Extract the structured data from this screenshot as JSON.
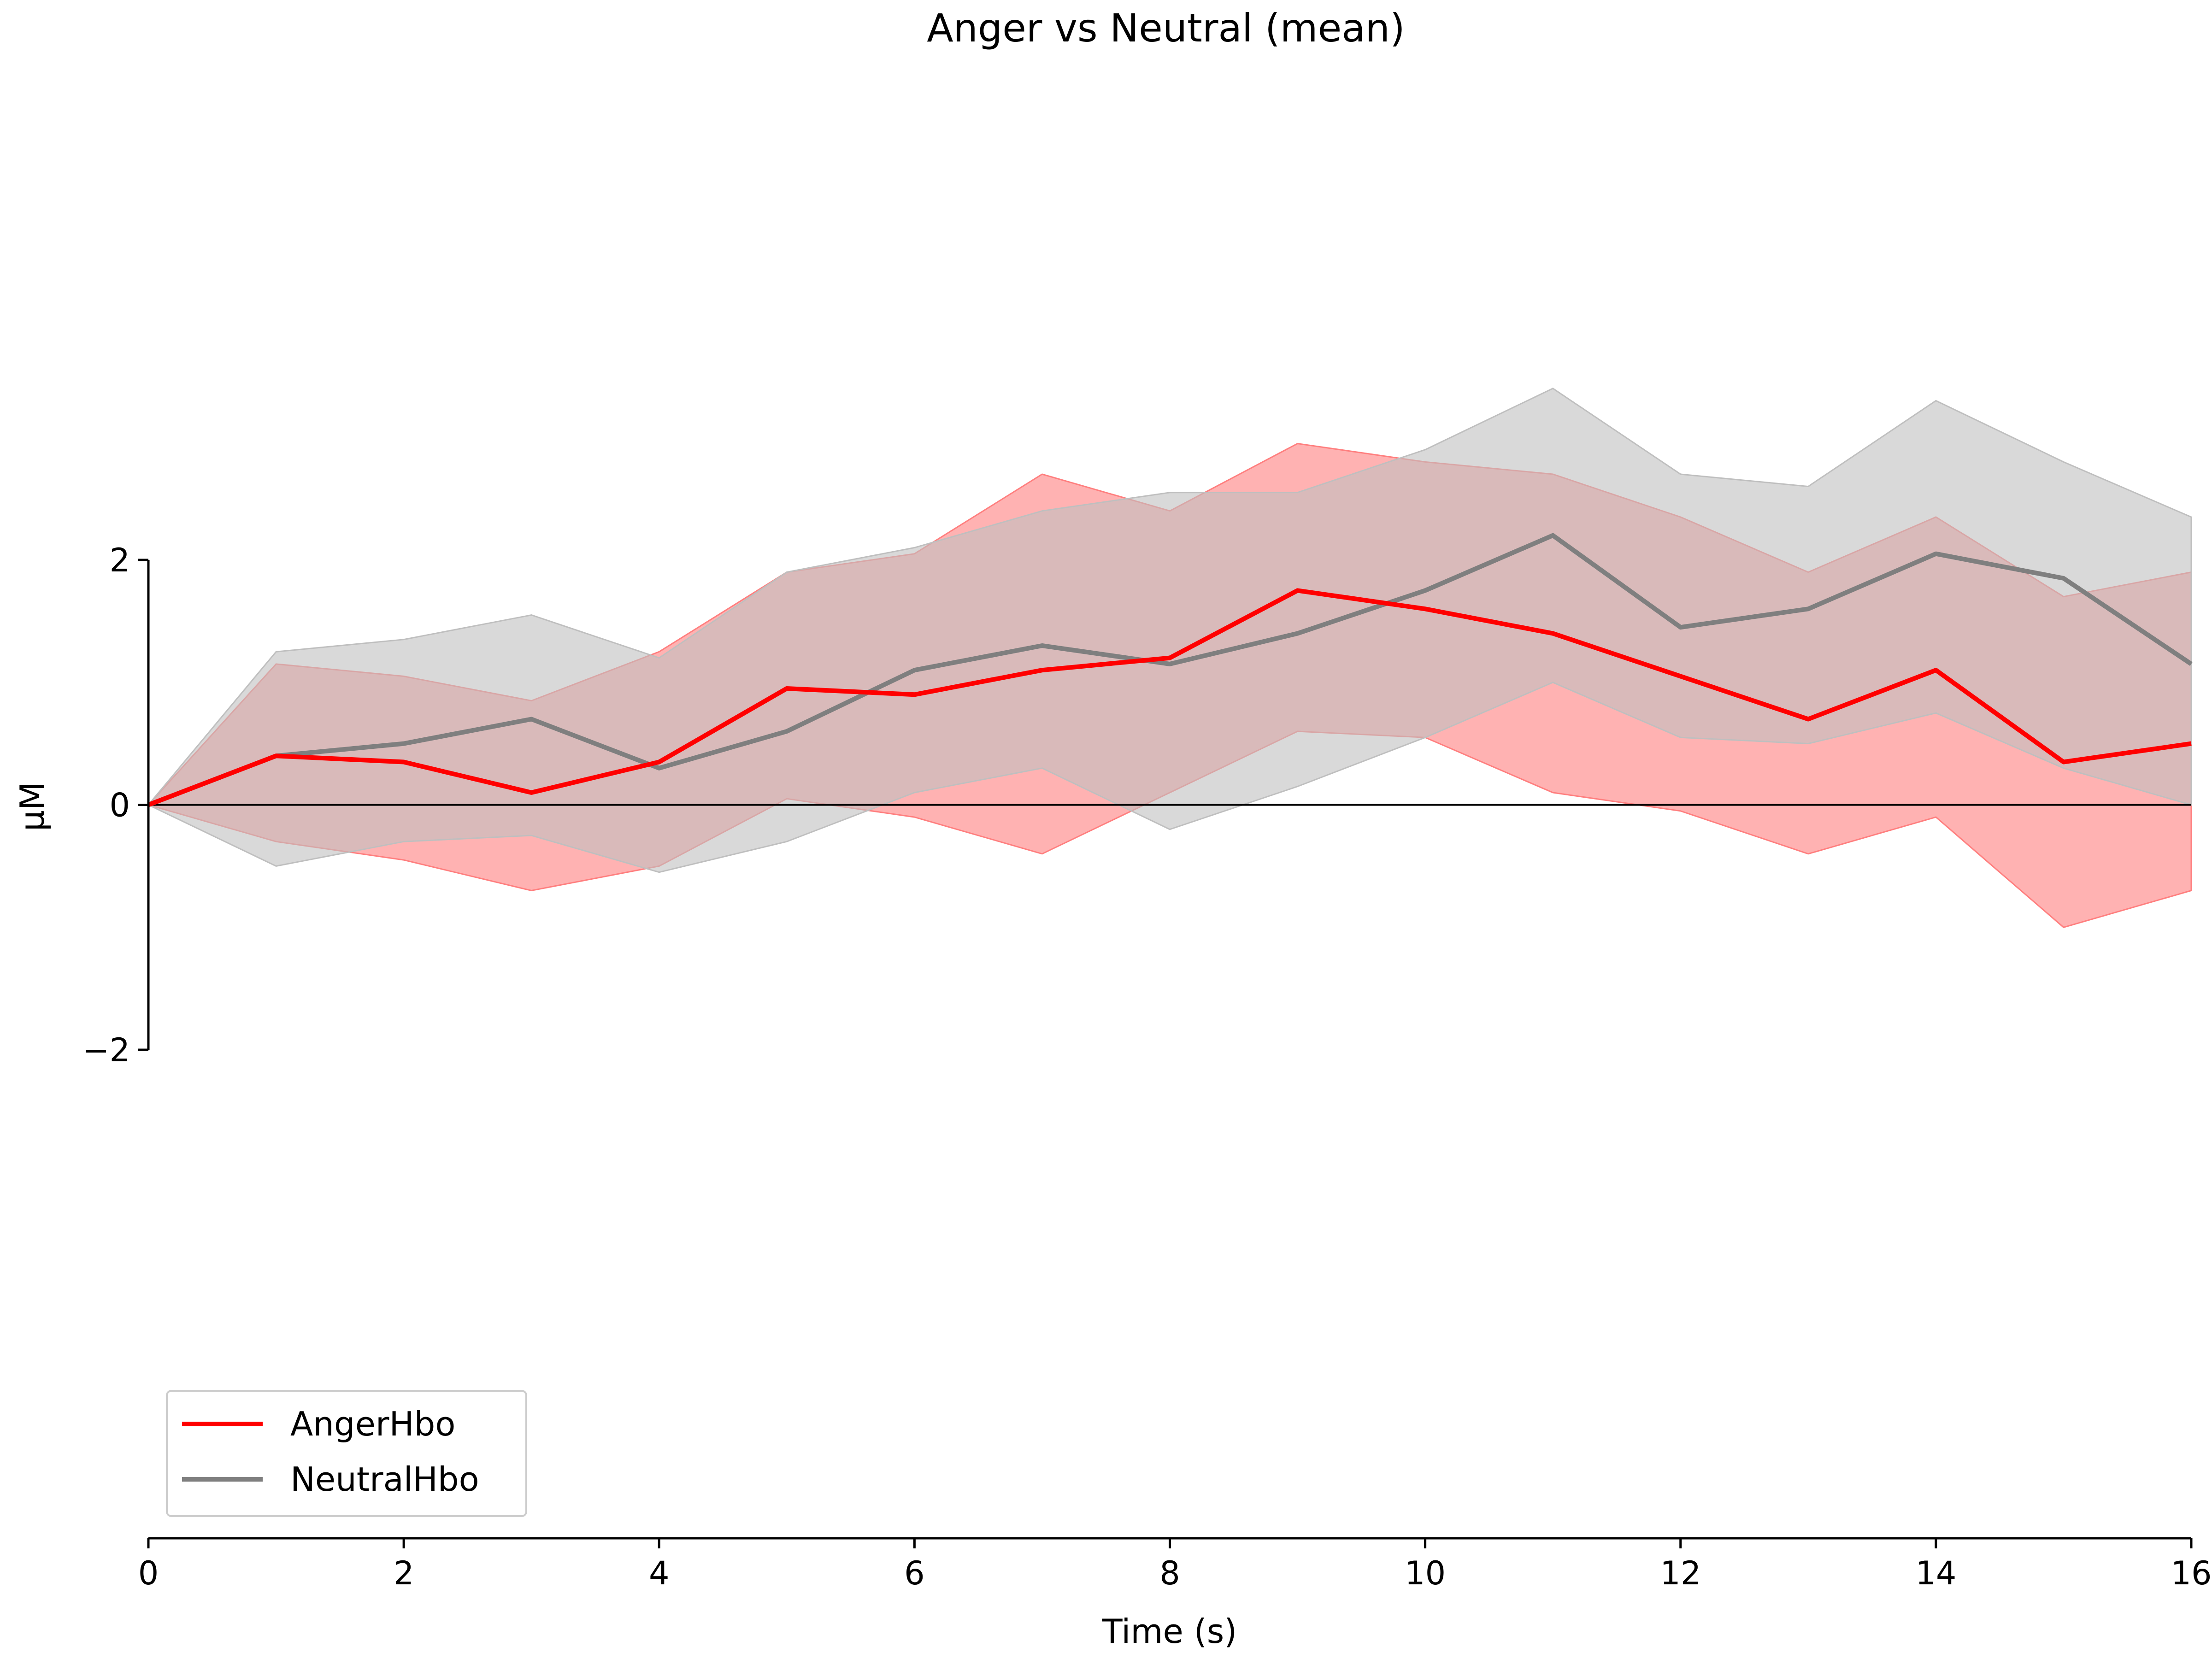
{
  "chart_data": {
    "type": "line",
    "title": "Anger vs Neutral (mean)",
    "xlabel": "Time (s)",
    "ylabel": "µM",
    "xlim": [
      0,
      16
    ],
    "ylim": [
      -2,
      2
    ],
    "x_ticks": [
      0,
      2,
      4,
      6,
      8,
      10,
      12,
      14,
      16
    ],
    "x_tick_labels": [
      "0",
      "2",
      "4",
      "6",
      "8",
      "10",
      "12",
      "14",
      "16"
    ],
    "y_ticks": [
      -2,
      0,
      2
    ],
    "y_tick_labels": [
      "−2",
      "0",
      "2"
    ],
    "zero_line": true,
    "grid": false,
    "legend_position": "bottom-left",
    "x": [
      0.0,
      1.0,
      2.0,
      3.0,
      4.0,
      5.0,
      6.0,
      7.0,
      8.0,
      9.0,
      10.0,
      11.0,
      12.0,
      13.0,
      14.0,
      15.0,
      16.0
    ],
    "series": [
      {
        "name": "AngerHbo",
        "color": "#ff0000",
        "band_color": "#ff7f7f",
        "values": [
          0.0,
          0.4,
          0.35,
          0.1,
          0.35,
          0.95,
          0.9,
          1.1,
          1.2,
          1.75,
          1.6,
          1.4,
          1.05,
          0.7,
          1.1,
          0.35,
          0.5
        ],
        "band_lower": [
          0.0,
          -0.3,
          -0.45,
          -0.7,
          -0.5,
          0.05,
          -0.1,
          -0.4,
          0.1,
          0.6,
          0.55,
          0.1,
          -0.05,
          -0.4,
          -0.1,
          -1.0,
          -0.7
        ],
        "band_upper": [
          0.0,
          1.15,
          1.05,
          0.85,
          1.25,
          1.9,
          2.05,
          2.7,
          2.4,
          2.95,
          2.8,
          2.7,
          2.35,
          1.9,
          2.35,
          1.7,
          1.9
        ]
      },
      {
        "name": "NeutralHbo",
        "color": "#7f7f7f",
        "band_color": "#bfbfbf",
        "values": [
          0.0,
          0.4,
          0.5,
          0.7,
          0.3,
          0.6,
          1.1,
          1.3,
          1.15,
          1.4,
          1.75,
          2.2,
          1.45,
          1.6,
          2.05,
          1.85,
          1.15
        ],
        "band_lower": [
          0.0,
          -0.5,
          -0.3,
          -0.25,
          -0.55,
          -0.3,
          0.1,
          0.3,
          -0.2,
          0.15,
          0.55,
          1.0,
          0.55,
          0.5,
          0.75,
          0.3,
          0.0
        ],
        "band_upper": [
          0.0,
          1.25,
          1.35,
          1.55,
          1.2,
          1.9,
          2.1,
          2.4,
          2.55,
          2.55,
          2.9,
          3.4,
          2.7,
          2.6,
          3.3,
          2.8,
          2.35
        ]
      }
    ]
  }
}
